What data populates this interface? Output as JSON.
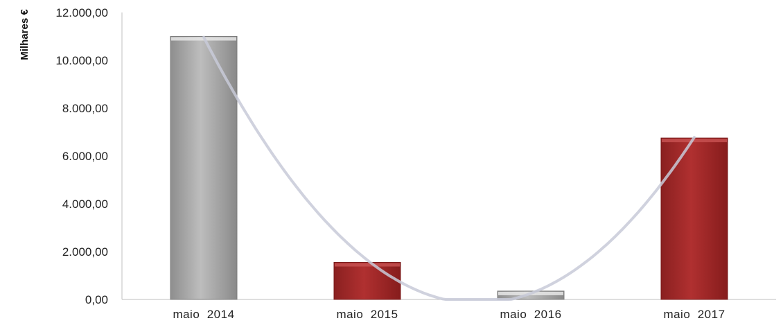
{
  "chart_data": {
    "type": "bar",
    "title": "",
    "xlabel": "",
    "ylabel": "Milhares €",
    "categories": [
      "maio  2014",
      "maio  2015",
      "maio  2016",
      "maio  2017"
    ],
    "values": [
      11000,
      1550,
      350,
      6750
    ],
    "bar_colors": [
      "#a9a9a9",
      "#a52a2a",
      "#b8b8b8",
      "#a52a2a"
    ],
    "ylim": [
      0,
      12000
    ],
    "yticks": [
      0,
      2000,
      4000,
      6000,
      8000,
      10000,
      12000
    ],
    "ytick_labels": [
      "0,00",
      "2.000,00",
      "4.000,00",
      "6.000,00",
      "8.000,00",
      "10.000,00",
      "12.000,00"
    ],
    "trendline": {
      "type": "polynomial",
      "order": 2,
      "color": "#c8cad8"
    },
    "grid": false,
    "legend": "none"
  }
}
